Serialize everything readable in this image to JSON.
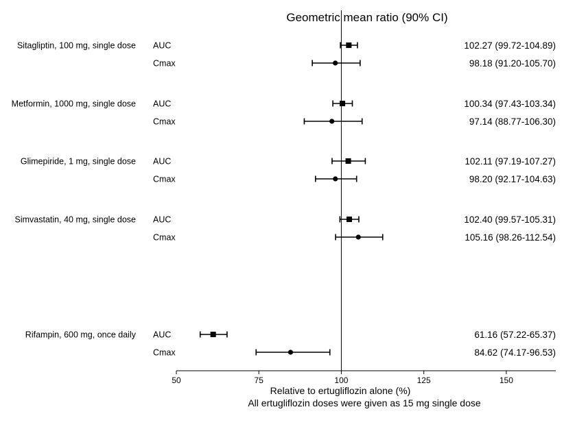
{
  "chart_data": {
    "type": "forest",
    "title": "Geometric mean ratio (90% CI)",
    "xlabel": "Relative to ertugliflozin alone (%)",
    "footnote": "All ertugliflozin doses were given as 15 mg single dose",
    "xlim": [
      50,
      165
    ],
    "xticks": [
      50,
      75,
      100,
      125,
      150
    ],
    "reference_line": 100,
    "groups": [
      {
        "drug": "Sitagliptin, 100 mg, single dose",
        "rows": [
          {
            "metric": "AUC",
            "value": 102.27,
            "lo": 99.72,
            "hi": 104.89,
            "label": "102.27 (99.72-104.89)",
            "marker": "square"
          },
          {
            "metric": "Cmax",
            "value": 98.18,
            "lo": 91.2,
            "hi": 105.7,
            "label": "98.18 (91.20-105.70)",
            "marker": "circle"
          }
        ]
      },
      {
        "drug": "Metformin, 1000 mg, single dose",
        "rows": [
          {
            "metric": "AUC",
            "value": 100.34,
            "lo": 97.43,
            "hi": 103.34,
            "label": "100.34 (97.43-103.34)",
            "marker": "square"
          },
          {
            "metric": "Cmax",
            "value": 97.14,
            "lo": 88.77,
            "hi": 106.3,
            "label": "97.14 (88.77-106.30)",
            "marker": "circle"
          }
        ]
      },
      {
        "drug": "Glimepiride, 1 mg, single dose",
        "rows": [
          {
            "metric": "AUC",
            "value": 102.11,
            "lo": 97.19,
            "hi": 107.27,
            "label": "102.11 (97.19-107.27)",
            "marker": "square"
          },
          {
            "metric": "Cmax",
            "value": 98.2,
            "lo": 92.17,
            "hi": 104.63,
            "label": "98.20 (92.17-104.63)",
            "marker": "circle"
          }
        ]
      },
      {
        "drug": "Simvastatin, 40 mg, single dose",
        "rows": [
          {
            "metric": "AUC",
            "value": 102.4,
            "lo": 99.57,
            "hi": 105.31,
            "label": "102.40 (99.57-105.31)",
            "marker": "square"
          },
          {
            "metric": "Cmax",
            "value": 105.16,
            "lo": 98.26,
            "hi": 112.54,
            "label": "105.16 (98.26-112.54)",
            "marker": "circle"
          }
        ]
      },
      {
        "drug": "Rifampin, 600 mg, once daily",
        "rows": [
          {
            "metric": "AUC",
            "value": 61.16,
            "lo": 57.22,
            "hi": 65.37,
            "label": "61.16 (57.22-65.37)",
            "marker": "square"
          },
          {
            "metric": "Cmax",
            "value": 84.62,
            "lo": 74.17,
            "hi": 96.53,
            "label": "84.62 (74.17-96.53)",
            "marker": "circle"
          }
        ]
      }
    ]
  }
}
